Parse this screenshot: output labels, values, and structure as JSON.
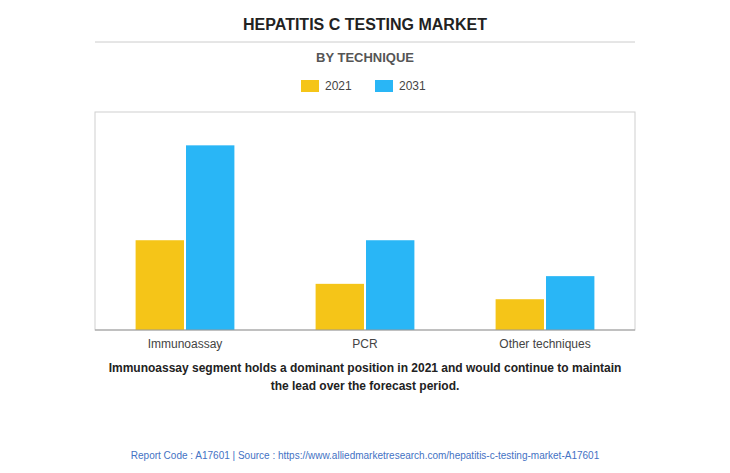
{
  "chart_data": {
    "type": "bar",
    "title": "HEPATITIS C TESTING MARKET",
    "subtitle": "BY TECHNIQUE",
    "categories": [
      "Immunoassay",
      "PCR",
      "Other techniques"
    ],
    "series": [
      {
        "name": "2021",
        "color": "#F5C518",
        "values": [
          3.5,
          1.8,
          1.2
        ]
      },
      {
        "name": "2031",
        "color": "#29B6F6",
        "values": [
          7.2,
          3.5,
          2.1
        ]
      }
    ],
    "ylim": [
      0,
      8.5
    ],
    "grid": false,
    "legend": "top",
    "tick_labels": "x",
    "annotations": [
      "Immunoassay segment holds a dominant position in 2021 and would continue to maintain\nthe lead over the forecast period.",
      "Report Code : A17601  |  Source : https://www.alliedmarketresearch.com/hepatitis-c-testing-market-A17601"
    ]
  }
}
